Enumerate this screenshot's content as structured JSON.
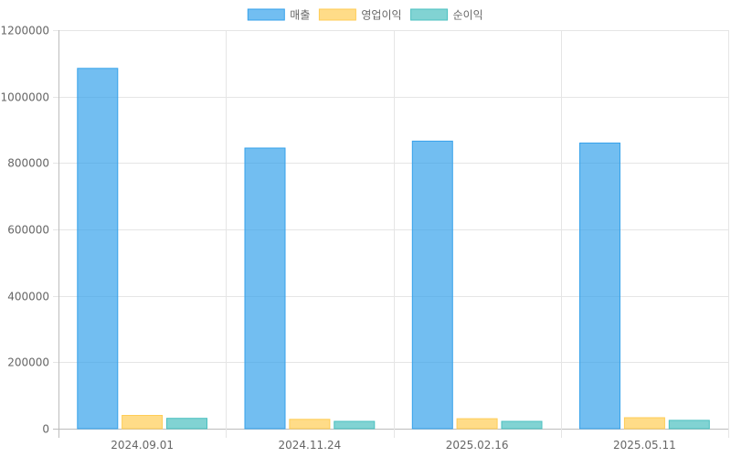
{
  "chart_data": {
    "type": "bar",
    "categories": [
      "2024.09.01",
      "2024.11.24",
      "2025.02.16",
      "2025.05.11"
    ],
    "series": [
      {
        "name": "매출",
        "values": [
          1085000,
          845000,
          866000,
          860000
        ],
        "color": "#36a2eb"
      },
      {
        "name": "영업이익",
        "values": [
          40000,
          28000,
          30000,
          33000
        ],
        "color": "#ffcd56"
      },
      {
        "name": "순이익",
        "values": [
          31000,
          22000,
          22000,
          25000
        ],
        "color": "#4bc0c0"
      }
    ],
    "ylim": [
      0,
      1200000
    ],
    "yticks": [
      0,
      200000,
      400000,
      600000,
      800000,
      1000000,
      1200000
    ],
    "grid": true,
    "legend_position": "top"
  }
}
